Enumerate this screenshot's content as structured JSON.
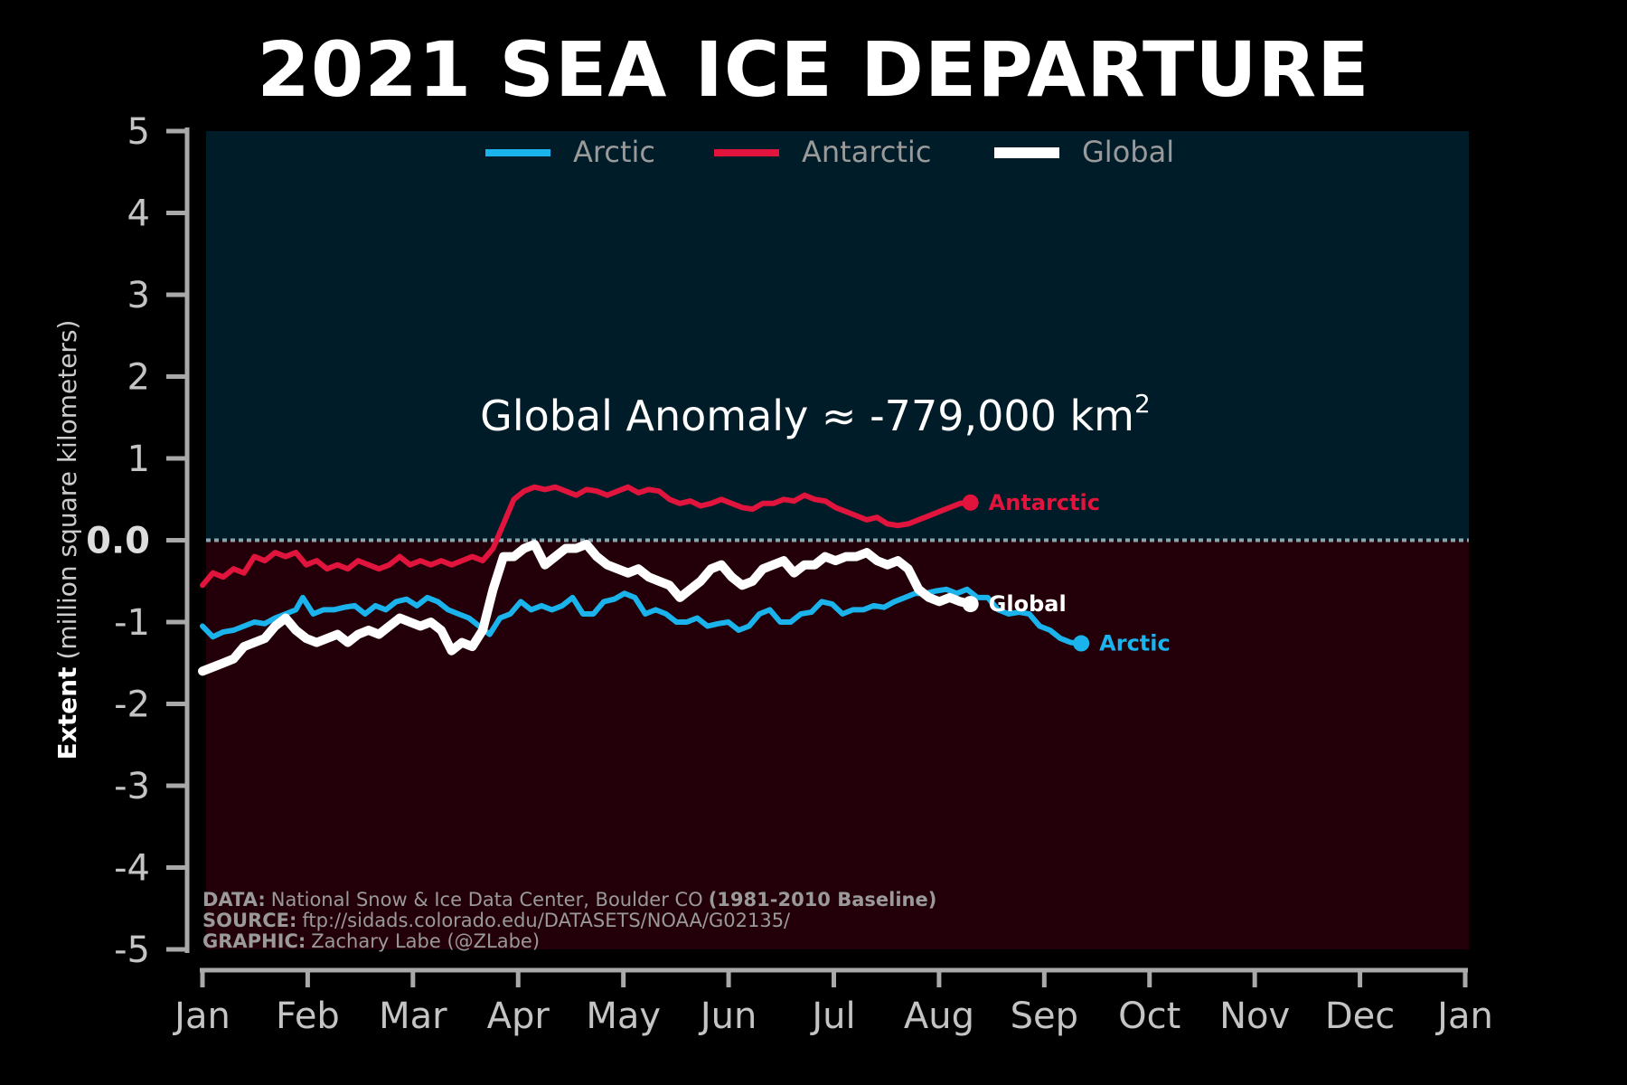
{
  "chart_data": {
    "type": "line",
    "title": "2021 SEA ICE DEPARTURE",
    "ylabel_bold": "Extent",
    "ylabel_rest": "(million square kilometers)",
    "ylim": [
      -5,
      5
    ],
    "yticks": [
      "5",
      "4",
      "3",
      "2",
      "1",
      "0.0",
      "-1",
      "-2",
      "-3",
      "-4",
      "-5"
    ],
    "ytick_values": [
      5,
      4,
      3,
      2,
      1,
      0,
      -1,
      -2,
      -3,
      -4,
      -5
    ],
    "months": [
      "Jan",
      "Feb",
      "Mar",
      "Apr",
      "May",
      "Jun",
      "Jul",
      "Aug",
      "Sep",
      "Oct",
      "Nov",
      "Dec",
      "Jan"
    ],
    "annotation": "Global Anomaly ≈ -779,000 km",
    "annotation_sup": "2",
    "legend": [
      {
        "name": "Arctic",
        "color": "#1ab3ec"
      },
      {
        "name": "Antarctic",
        "color": "#e0143c"
      },
      {
        "name": "Global",
        "color": "#ffffff"
      }
    ],
    "legend_position": "top-center",
    "background_upper": "#001c28",
    "background_lower": "#230009",
    "zero_line_color": "#8aa4ae",
    "series": [
      {
        "name": "Arctic",
        "color": "#1ab3ec",
        "end_label": "Arctic",
        "points": [
          [
            0,
            -1.05
          ],
          [
            3,
            -1.18
          ],
          [
            6,
            -1.12
          ],
          [
            9,
            -1.1
          ],
          [
            12,
            -1.05
          ],
          [
            15,
            -1.0
          ],
          [
            18,
            -1.02
          ],
          [
            21,
            -0.95
          ],
          [
            24,
            -0.9
          ],
          [
            27,
            -0.85
          ],
          [
            29,
            -0.7
          ],
          [
            32,
            -0.9
          ],
          [
            35,
            -0.85
          ],
          [
            38,
            -0.85
          ],
          [
            41,
            -0.82
          ],
          [
            44,
            -0.8
          ],
          [
            47,
            -0.9
          ],
          [
            50,
            -0.8
          ],
          [
            53,
            -0.85
          ],
          [
            56,
            -0.75
          ],
          [
            59,
            -0.72
          ],
          [
            62,
            -0.8
          ],
          [
            65,
            -0.7
          ],
          [
            68,
            -0.75
          ],
          [
            71,
            -0.85
          ],
          [
            74,
            -0.9
          ],
          [
            77,
            -0.95
          ],
          [
            80,
            -1.05
          ],
          [
            83,
            -1.15
          ],
          [
            86,
            -0.95
          ],
          [
            89,
            -0.9
          ],
          [
            92,
            -0.75
          ],
          [
            95,
            -0.85
          ],
          [
            98,
            -0.8
          ],
          [
            101,
            -0.85
          ],
          [
            104,
            -0.8
          ],
          [
            107,
            -0.7
          ],
          [
            110,
            -0.9
          ],
          [
            113,
            -0.9
          ],
          [
            116,
            -0.75
          ],
          [
            119,
            -0.72
          ],
          [
            122,
            -0.65
          ],
          [
            125,
            -0.7
          ],
          [
            128,
            -0.9
          ],
          [
            131,
            -0.85
          ],
          [
            134,
            -0.9
          ],
          [
            137,
            -1.0
          ],
          [
            140,
            -1.0
          ],
          [
            143,
            -0.95
          ],
          [
            146,
            -1.05
          ],
          [
            149,
            -1.02
          ],
          [
            152,
            -1.0
          ],
          [
            155,
            -1.1
          ],
          [
            158,
            -1.05
          ],
          [
            161,
            -0.9
          ],
          [
            164,
            -0.85
          ],
          [
            167,
            -1.0
          ],
          [
            170,
            -1.0
          ],
          [
            173,
            -0.9
          ],
          [
            176,
            -0.88
          ],
          [
            179,
            -0.75
          ],
          [
            182,
            -0.78
          ],
          [
            185,
            -0.9
          ],
          [
            188,
            -0.85
          ],
          [
            191,
            -0.85
          ],
          [
            194,
            -0.8
          ],
          [
            197,
            -0.82
          ],
          [
            200,
            -0.75
          ],
          [
            203,
            -0.7
          ],
          [
            206,
            -0.65
          ],
          [
            209,
            -0.65
          ],
          [
            212,
            -0.62
          ],
          [
            215,
            -0.6
          ],
          [
            218,
            -0.65
          ],
          [
            221,
            -0.6
          ],
          [
            224,
            -0.7
          ],
          [
            227,
            -0.7
          ],
          [
            230,
            -0.85
          ],
          [
            233,
            -0.9
          ],
          [
            236,
            -0.88
          ],
          [
            239,
            -0.9
          ],
          [
            242,
            -1.05
          ],
          [
            245,
            -1.1
          ],
          [
            248,
            -1.2
          ],
          [
            251,
            -1.25
          ],
          [
            254,
            -1.26
          ]
        ]
      },
      {
        "name": "Antarctic",
        "color": "#e0143c",
        "end_label": "Antarctic",
        "points": [
          [
            0,
            -0.55
          ],
          [
            3,
            -0.4
          ],
          [
            6,
            -0.45
          ],
          [
            9,
            -0.35
          ],
          [
            12,
            -0.4
          ],
          [
            15,
            -0.2
          ],
          [
            18,
            -0.25
          ],
          [
            21,
            -0.15
          ],
          [
            24,
            -0.2
          ],
          [
            27,
            -0.15
          ],
          [
            30,
            -0.3
          ],
          [
            33,
            -0.25
          ],
          [
            36,
            -0.35
          ],
          [
            39,
            -0.3
          ],
          [
            42,
            -0.35
          ],
          [
            45,
            -0.25
          ],
          [
            48,
            -0.3
          ],
          [
            51,
            -0.35
          ],
          [
            54,
            -0.3
          ],
          [
            57,
            -0.2
          ],
          [
            60,
            -0.3
          ],
          [
            63,
            -0.25
          ],
          [
            66,
            -0.3
          ],
          [
            69,
            -0.25
          ],
          [
            72,
            -0.3
          ],
          [
            75,
            -0.25
          ],
          [
            78,
            -0.2
          ],
          [
            81,
            -0.25
          ],
          [
            84,
            -0.1
          ],
          [
            87,
            0.2
          ],
          [
            90,
            0.5
          ],
          [
            93,
            0.6
          ],
          [
            96,
            0.65
          ],
          [
            99,
            0.62
          ],
          [
            102,
            0.65
          ],
          [
            105,
            0.6
          ],
          [
            108,
            0.55
          ],
          [
            111,
            0.62
          ],
          [
            114,
            0.6
          ],
          [
            117,
            0.55
          ],
          [
            120,
            0.6
          ],
          [
            123,
            0.65
          ],
          [
            126,
            0.58
          ],
          [
            129,
            0.62
          ],
          [
            132,
            0.6
          ],
          [
            135,
            0.5
          ],
          [
            138,
            0.45
          ],
          [
            141,
            0.48
          ],
          [
            144,
            0.42
          ],
          [
            147,
            0.45
          ],
          [
            150,
            0.5
          ],
          [
            153,
            0.45
          ],
          [
            156,
            0.4
          ],
          [
            159,
            0.38
          ],
          [
            162,
            0.45
          ],
          [
            165,
            0.45
          ],
          [
            168,
            0.5
          ],
          [
            171,
            0.48
          ],
          [
            174,
            0.55
          ],
          [
            177,
            0.5
          ],
          [
            180,
            0.48
          ],
          [
            183,
            0.4
          ],
          [
            186,
            0.35
          ],
          [
            189,
            0.3
          ],
          [
            192,
            0.25
          ],
          [
            195,
            0.28
          ],
          [
            198,
            0.2
          ],
          [
            201,
            0.18
          ],
          [
            204,
            0.2
          ],
          [
            207,
            0.25
          ],
          [
            210,
            0.3
          ],
          [
            213,
            0.35
          ],
          [
            216,
            0.4
          ],
          [
            219,
            0.45
          ],
          [
            222,
            0.46
          ]
        ]
      },
      {
        "name": "Global",
        "color": "#ffffff",
        "end_label": "Global",
        "points": [
          [
            0,
            -1.6
          ],
          [
            3,
            -1.55
          ],
          [
            6,
            -1.5
          ],
          [
            9,
            -1.45
          ],
          [
            12,
            -1.3
          ],
          [
            15,
            -1.25
          ],
          [
            18,
            -1.2
          ],
          [
            21,
            -1.05
          ],
          [
            24,
            -0.95
          ],
          [
            27,
            -1.1
          ],
          [
            30,
            -1.2
          ],
          [
            33,
            -1.25
          ],
          [
            36,
            -1.2
          ],
          [
            39,
            -1.15
          ],
          [
            42,
            -1.25
          ],
          [
            45,
            -1.15
          ],
          [
            48,
            -1.1
          ],
          [
            51,
            -1.15
          ],
          [
            54,
            -1.05
          ],
          [
            57,
            -0.95
          ],
          [
            60,
            -1.0
          ],
          [
            63,
            -1.05
          ],
          [
            66,
            -1.0
          ],
          [
            69,
            -1.1
          ],
          [
            72,
            -1.35
          ],
          [
            75,
            -1.25
          ],
          [
            78,
            -1.3
          ],
          [
            81,
            -1.1
          ],
          [
            84,
            -0.6
          ],
          [
            87,
            -0.2
          ],
          [
            90,
            -0.2
          ],
          [
            93,
            -0.1
          ],
          [
            96,
            -0.05
          ],
          [
            99,
            -0.3
          ],
          [
            102,
            -0.2
          ],
          [
            105,
            -0.1
          ],
          [
            108,
            -0.1
          ],
          [
            111,
            -0.05
          ],
          [
            114,
            -0.2
          ],
          [
            117,
            -0.3
          ],
          [
            120,
            -0.35
          ],
          [
            123,
            -0.4
          ],
          [
            126,
            -0.35
          ],
          [
            129,
            -0.45
          ],
          [
            132,
            -0.5
          ],
          [
            135,
            -0.55
          ],
          [
            138,
            -0.7
          ],
          [
            141,
            -0.6
          ],
          [
            144,
            -0.5
          ],
          [
            147,
            -0.35
          ],
          [
            150,
            -0.3
          ],
          [
            153,
            -0.45
          ],
          [
            156,
            -0.55
          ],
          [
            159,
            -0.5
          ],
          [
            162,
            -0.35
          ],
          [
            165,
            -0.3
          ],
          [
            168,
            -0.25
          ],
          [
            171,
            -0.4
          ],
          [
            174,
            -0.3
          ],
          [
            177,
            -0.3
          ],
          [
            180,
            -0.2
          ],
          [
            183,
            -0.25
          ],
          [
            186,
            -0.2
          ],
          [
            189,
            -0.2
          ],
          [
            192,
            -0.15
          ],
          [
            195,
            -0.25
          ],
          [
            198,
            -0.3
          ],
          [
            201,
            -0.25
          ],
          [
            204,
            -0.35
          ],
          [
            207,
            -0.6
          ],
          [
            210,
            -0.7
          ],
          [
            213,
            -0.75
          ],
          [
            216,
            -0.7
          ],
          [
            219,
            -0.75
          ],
          [
            222,
            -0.78
          ]
        ]
      }
    ]
  },
  "credits": {
    "data_label": "DATA:",
    "data_text": "National Snow & Ice Data Center, Boulder CO",
    "data_bold": "(1981-2010 Baseline)",
    "source_label": "SOURCE:",
    "source_text": "ftp://sidads.colorado.edu/DATASETS/NOAA/G02135/",
    "graphic_label": "GRAPHIC:",
    "graphic_text": "Zachary Labe (@ZLabe)"
  }
}
